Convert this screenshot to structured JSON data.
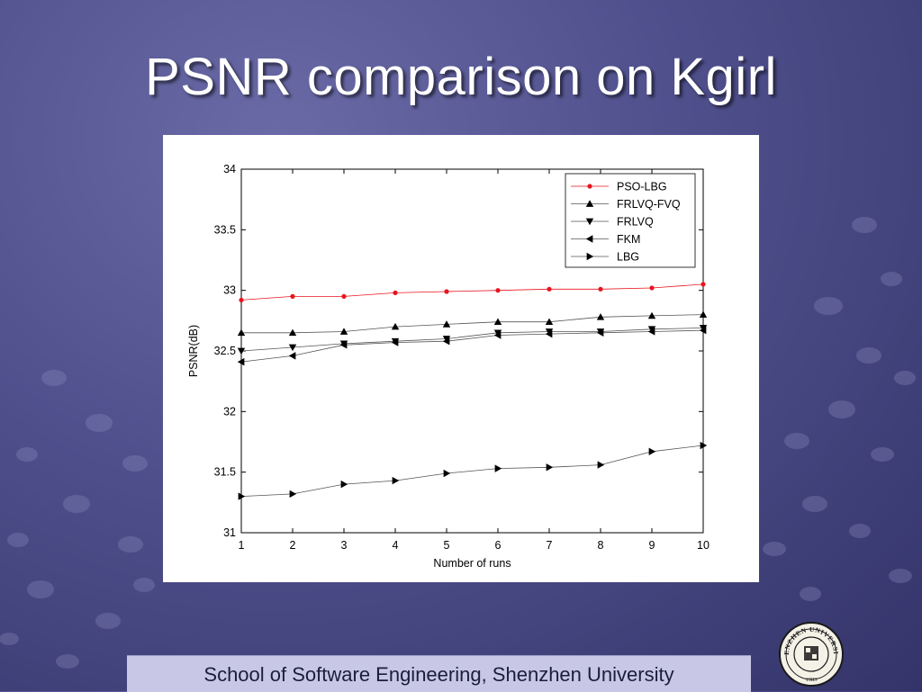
{
  "slide": {
    "title": "PSNR comparison on Kgirl",
    "footer": "School of Software Engineering, Shenzhen University"
  },
  "chart_data": {
    "type": "line",
    "title": "",
    "xlabel": "Number of runs",
    "ylabel": "PSNR(dB)",
    "x": [
      1,
      2,
      3,
      4,
      5,
      6,
      7,
      8,
      9,
      10
    ],
    "xlim": [
      1,
      10
    ],
    "ylim": [
      31,
      34
    ],
    "xticks": [
      "1",
      "2",
      "3",
      "4",
      "5",
      "6",
      "7",
      "8",
      "9",
      "10"
    ],
    "yticks": [
      "31",
      "31.5",
      "32",
      "32.5",
      "33",
      "33.5",
      "34"
    ],
    "grid": false,
    "legend_position": "top-right",
    "series": [
      {
        "name": "PSO-LBG",
        "marker": "dot",
        "color": "#e8141e",
        "values": [
          32.92,
          32.95,
          32.95,
          32.98,
          32.99,
          33.0,
          33.01,
          33.01,
          33.02,
          33.05
        ]
      },
      {
        "name": "FRLVQ-FVQ",
        "marker": "triangle-up",
        "color": "#000000",
        "values": [
          32.65,
          32.65,
          32.66,
          32.7,
          32.72,
          32.74,
          32.74,
          32.78,
          32.79,
          32.8
        ]
      },
      {
        "name": "FRLVQ",
        "marker": "triangle-down",
        "color": "#000000",
        "values": [
          32.5,
          32.53,
          32.56,
          32.58,
          32.6,
          32.65,
          32.66,
          32.66,
          32.68,
          32.69
        ]
      },
      {
        "name": "FKM",
        "marker": "triangle-left",
        "color": "#000000",
        "values": [
          32.41,
          32.46,
          32.55,
          32.57,
          32.58,
          32.63,
          32.64,
          32.65,
          32.66,
          32.67
        ]
      },
      {
        "name": "LBG",
        "marker": "triangle-right",
        "color": "#000000",
        "values": [
          31.3,
          31.32,
          31.4,
          31.43,
          31.49,
          31.53,
          31.54,
          31.56,
          31.67,
          31.72
        ]
      }
    ]
  },
  "logo": {
    "name": "university-seal-icon",
    "text": "SHENZHEN UNIVERSITY",
    "year": "1983",
    "color": "#1a1a1a"
  }
}
